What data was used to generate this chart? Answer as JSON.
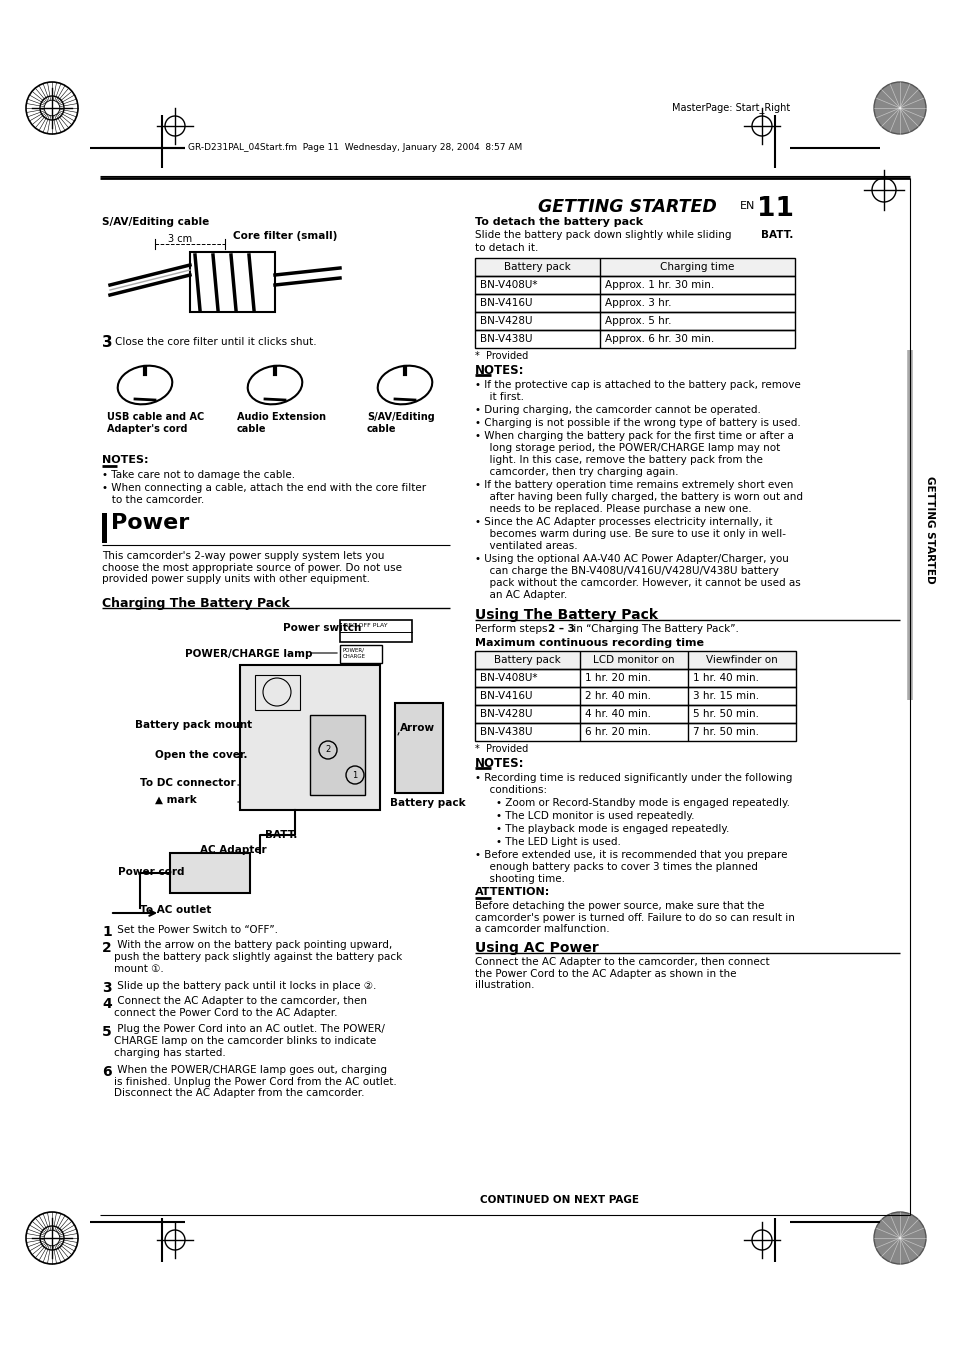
{
  "bg_color": "#ffffff",
  "header_text": "MasterPage: Start_Right",
  "file_text": "GR-D231PAL_04Start.fm  Page 11  Wednesday, January 28, 2004  8:57 AM",
  "content": {
    "sav_label": "S/AV/Editing cable",
    "cm3_label": "3 cm",
    "core_filter_label": "Core filter (small)",
    "step3_close": "Close the core filter until it clicks shut.",
    "usb_label": "USB cable and AC\nAdapter's cord",
    "audio_label": "Audio Extension\ncable",
    "sav2_label": "S/AV/Editing\ncable",
    "notes_left_title": "NOTES:",
    "notes_left_1": "Take care not to damage the cable.",
    "notes_left_2": "When connecting a cable, attach the end with the core filter\n   to the camcorder.",
    "power_title": "Power",
    "power_intro": "This camcorder's 2-way power supply system lets you\nchoose the most appropriate source of power. Do not use\nprovided power supply units with other equipment.",
    "charging_title": "Charging The Battery Pack",
    "power_switch_label": "Power switch",
    "powercharge_label": "POWER/CHARGE lamp",
    "battery_mount_label": "Battery pack mount",
    "open_cover_label": "Open the cover.",
    "dc_connector_label": "To DC connector",
    "mark_label": "▲ mark",
    "arrow_label": "Arrow",
    "battery_pack_label": "Battery pack",
    "batt_label": "BATT.",
    "power_cord_label": "Power cord",
    "ac_adapter_label": "AC Adapter",
    "ac_outlet_label": "To AC outlet",
    "step1": " Set the Power Switch to “OFF”.",
    "step2": " With the arrow on the battery pack pointing upward,\npush the battery pack slightly against the battery pack\nmount ①.",
    "step3b": " Slide up the battery pack until it locks in place ②.",
    "step4": " Connect the AC Adapter to the camcorder, then\nconnect the Power Cord to the AC Adapter.",
    "step5": " Plug the Power Cord into an AC outlet. The POWER/\nCHARGE lamp on the camcorder blinks to indicate\ncharging has started.",
    "step6": " When the POWER/CHARGE lamp goes out, charging\nis finished. Unplug the Power Cord from the AC outlet.\nDisconnect the AC Adapter from the camcorder.",
    "detach_title": "To detach the battery pack",
    "detach_text1": "Slide the battery pack down slightly while sliding ",
    "detach_batt": "BATT.",
    "detach_text2": "\nto detach it.",
    "charge_table_headers": [
      "Battery pack",
      "Charging time"
    ],
    "charge_table_rows": [
      [
        "BN-V408U*",
        "Approx. 1 hr. 30 min."
      ],
      [
        "BN-V416U",
        "Approx. 3 hr."
      ],
      [
        "BN-V428U",
        "Approx. 5 hr."
      ],
      [
        "BN-V438U",
        "Approx. 6 hr. 30 min."
      ]
    ],
    "provided_note": "*  Provided",
    "notes_right_title": "NOTES:",
    "notes_right": [
      "If the protective cap is attached to the battery pack, remove\n  it first.",
      "During charging, the camcorder cannot be operated.",
      "Charging is not possible if the wrong type of battery is used.",
      "When charging the battery pack for the first time or after a\n  long storage period, the POWER/CHARGE lamp may not\n  light. In this case, remove the battery pack from the\n  camcorder, then try charging again.",
      "If the battery operation time remains extremely short even\n  after having been fully charged, the battery is worn out and\n  needs to be replaced. Please purchase a new one.",
      "Since the AC Adapter processes electricity internally, it\n  becomes warm during use. Be sure to use it only in well-\n  ventilated areas.",
      "Using the optional AA-V40 AC Power Adapter/Charger, you\n  can charge the BN-V408U/V416U/V428U/V438U battery\n  pack without the camcorder. However, it cannot be used as\n  an AC Adapter."
    ],
    "using_battery_title": "Using The Battery Pack",
    "using_battery_text": "Perform steps ",
    "using_battery_bold": "2 – 3",
    "using_battery_end": " in “Charging The Battery Pack”.",
    "max_rec_title": "Maximum continuous recording time",
    "rec_table_headers": [
      "Battery pack",
      "LCD monitor on",
      "Viewfinder on"
    ],
    "rec_table_rows": [
      [
        "BN-V408U*",
        "1 hr. 20 min.",
        "1 hr. 40 min."
      ],
      [
        "BN-V416U",
        "2 hr. 40 min.",
        "3 hr. 15 min."
      ],
      [
        "BN-V428U",
        "4 hr. 40 min.",
        "5 hr. 50 min."
      ],
      [
        "BN-V438U",
        "6 hr. 20 min.",
        "7 hr. 50 min."
      ]
    ],
    "provided_note2": "*  Provided",
    "notes_right2_title": "NOTES:",
    "notes_right2": [
      "Recording time is reduced significantly under the following\n  conditions:",
      "    • Zoom or Record-Standby mode is engaged repeatedly.",
      "    • The LCD monitor is used repeatedly.",
      "    • The playback mode is engaged repeatedly.",
      "    • The LED Light is used.",
      "Before extended use, it is recommended that you prepare\n  enough battery packs to cover 3 times the planned\n  shooting time."
    ],
    "attention_title": "ATTENTION:",
    "attention_text": "Before detaching the power source, make sure that the\ncamcorder's power is turned off. Failure to do so can result in\na camcorder malfunction.",
    "using_ac_title": "Using AC Power",
    "using_ac_text": "Connect the AC Adapter to the camcorder, then connect\nthe Power Cord to the AC Adapter as shown in the\nillustration.",
    "continued": "CONTINUED ON NEXT PAGE"
  }
}
